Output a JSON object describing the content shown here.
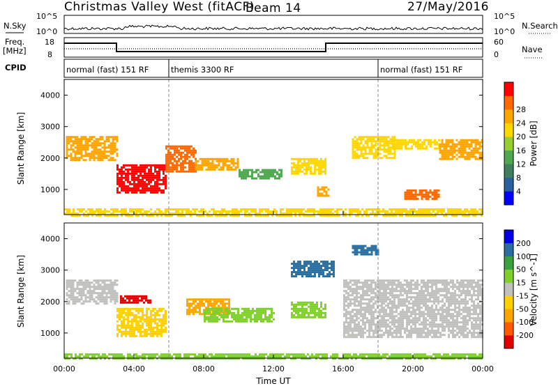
{
  "title": "Christmas Valley West (fitACF)",
  "beam": "Beam 14",
  "date": "27/May/2016",
  "small_panels": {
    "nsky_label": "N.Sky",
    "nsky_ticks": [
      "10^5",
      "10^0"
    ],
    "nsearch_label": "N.Search",
    "nsearch_ticks": [
      "10^5",
      "10^0"
    ],
    "freq_label": [
      "Freq.",
      "[MHz]"
    ],
    "freq_ticks": [
      "18",
      "8"
    ],
    "nave_label": "Nave",
    "nave_ticks": [
      "60",
      "0"
    ],
    "cpid_label": "CPID"
  },
  "cpid_segments": [
    {
      "label": "normal (fast) 151 RF",
      "start": 0,
      "end": 6
    },
    {
      "label": "themis 3300 RF",
      "start": 6,
      "end": 18
    },
    {
      "label": "normal (fast) 151 RF",
      "start": 18,
      "end": 24
    }
  ],
  "colors": {
    "power": [
      "#0000ff",
      "#2a5fa0",
      "#3f7f5f",
      "#4fa84f",
      "#9acd32",
      "#ffd700",
      "#ffa500",
      "#ff6a00",
      "#ff0000"
    ],
    "velocity": [
      "#e00000",
      "#ff5a00",
      "#ffa500",
      "#ffd000",
      "#c0c0bc",
      "#7fd02a",
      "#3ca03c",
      "#2a6fa0",
      "#0000e0"
    ]
  },
  "chart_data": [
    {
      "type": "heatmap",
      "quantity": "Power",
      "xlabel": "",
      "ylabel": "Slant Range [km]",
      "xlim": [
        "00:00",
        "24:00"
      ],
      "ylim": [
        200,
        4500
      ],
      "y_ticks": [
        "1000",
        "2000",
        "3000",
        "4000"
      ],
      "colorbar": {
        "label": "Power [dB]",
        "ticks": [
          "4",
          "8",
          "12",
          "16",
          "20",
          "24",
          "28"
        ],
        "range": [
          0,
          32
        ]
      },
      "echo_regions": [
        {
          "t0": 0.1,
          "t1": 3.0,
          "r0": 1950,
          "r1": 2700,
          "value": 24
        },
        {
          "t0": 3.0,
          "t1": 5.8,
          "r0": 900,
          "r1": 1800,
          "value": 30
        },
        {
          "t0": 5.8,
          "t1": 7.5,
          "r0": 1600,
          "r1": 2400,
          "value": 26
        },
        {
          "t0": 7.5,
          "t1": 10.0,
          "r0": 1650,
          "r1": 2000,
          "value": 22
        },
        {
          "t0": 10.0,
          "t1": 12.5,
          "r0": 1350,
          "r1": 1650,
          "value": 14
        },
        {
          "t0": 13.0,
          "t1": 15.0,
          "r0": 1500,
          "r1": 2000,
          "value": 20
        },
        {
          "t0": 14.5,
          "t1": 15.2,
          "r0": 800,
          "r1": 1100,
          "value": 22
        },
        {
          "t0": 16.5,
          "t1": 19.0,
          "r0": 2000,
          "r1": 2700,
          "value": 20
        },
        {
          "t0": 18.8,
          "t1": 21.5,
          "r0": 2300,
          "r1": 2600,
          "value": 18
        },
        {
          "t0": 19.5,
          "t1": 21.5,
          "r0": 700,
          "r1": 1000,
          "value": 26
        },
        {
          "t0": 21.5,
          "t1": 24.0,
          "r0": 2000,
          "r1": 2600,
          "value": 22
        },
        {
          "t0": 0.0,
          "t1": 24.0,
          "r0": 200,
          "r1": 400,
          "value": 18
        }
      ]
    },
    {
      "type": "heatmap",
      "quantity": "Velocity",
      "xlabel": "Time UT",
      "ylabel": "Slant Range [km]",
      "xlim": [
        "00:00",
        "24:00"
      ],
      "ylim": [
        200,
        4500
      ],
      "x_ticks": [
        "00:00",
        "04:00",
        "08:00",
        "12:00",
        "16:00",
        "20:00",
        "00:00"
      ],
      "y_ticks": [
        "1000",
        "2000",
        "3000",
        "4000"
      ],
      "colorbar": {
        "label": "Velocity [m s^-1]",
        "ticks": [
          "200",
          "100",
          "50",
          "15",
          "-15",
          "-50",
          "-100",
          "-200"
        ]
      },
      "echo_regions": [
        {
          "t0": 0.1,
          "t1": 3.0,
          "r0": 1950,
          "r1": 2700,
          "value": 0
        },
        {
          "t0": 3.0,
          "t1": 5.8,
          "r0": 900,
          "r1": 1800,
          "value": -30
        },
        {
          "t0": 3.2,
          "t1": 5.0,
          "r0": 1950,
          "r1": 2200,
          "value": -200
        },
        {
          "t0": 7.0,
          "t1": 9.5,
          "r0": 1600,
          "r1": 2100,
          "value": -60
        },
        {
          "t0": 8.0,
          "t1": 12.0,
          "r0": 1350,
          "r1": 1800,
          "value": 40
        },
        {
          "t0": 13.0,
          "t1": 15.0,
          "r0": 1500,
          "r1": 2000,
          "value": 30
        },
        {
          "t0": 13.0,
          "t1": 15.5,
          "r0": 2800,
          "r1": 3300,
          "value": 200
        },
        {
          "t0": 16.5,
          "t1": 18.0,
          "r0": 3500,
          "r1": 3800,
          "value": 200
        },
        {
          "t0": 16.0,
          "t1": 24.0,
          "r0": 900,
          "r1": 2700,
          "value": 0
        },
        {
          "t0": 0.0,
          "t1": 24.0,
          "r0": 200,
          "r1": 350,
          "value": 30
        }
      ]
    }
  ]
}
